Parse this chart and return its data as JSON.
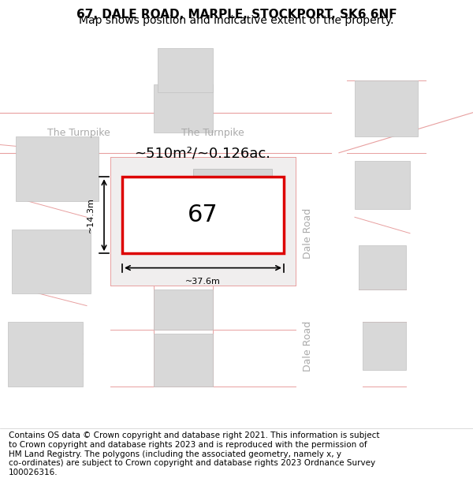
{
  "title": "67, DALE ROAD, MARPLE, STOCKPORT, SK6 6NF",
  "subtitle": "Map shows position and indicative extent of the property.",
  "footer_text": "Contains OS data © Crown copyright and database right 2021. This information is subject\nto Crown copyright and database rights 2023 and is reproduced with the permission of\nHM Land Registry. The polygons (including the associated geometry, namely x, y\nco-ordinates) are subject to Crown copyright and database rights 2023 Ordnance Survey\n100026316.",
  "map_bg": "#f5f5f5",
  "road_line_color": "#e8a0a0",
  "building_fill": "#d8d8d8",
  "building_edge": "#c0c0c0",
  "plot_fill": "#ffffff",
  "plot_edge": "#dd0000",
  "plot_edge_width": 2.5,
  "plot_label": "67",
  "area_label": "~510m²/~0.126ac.",
  "width_label": "~37.6m",
  "height_label": "~14.3m",
  "street_label_1": "The Turnpike",
  "street_label_2": "The Turnpike",
  "road_label_1": "Dale Road",
  "road_label_2": "Dale Road",
  "title_fontsize": 11,
  "subtitle_fontsize": 10,
  "footer_fontsize": 7.5
}
